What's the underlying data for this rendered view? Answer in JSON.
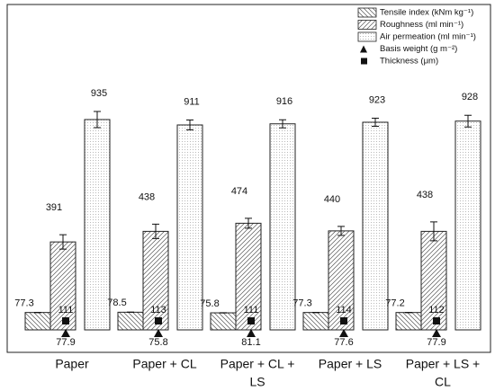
{
  "chart_data": {
    "type": "bar",
    "categories": [
      [
        "Paper"
      ],
      [
        "Paper + CL"
      ],
      [
        "Paper + CL +",
        "LS"
      ],
      [
        "Paper + LS"
      ],
      [
        "Paper + LS +",
        "CL"
      ]
    ],
    "series": [
      {
        "name": "Tensile index (kNm kg⁻¹)",
        "pattern": "back-hatch",
        "values": [
          77.3,
          78.5,
          75.8,
          77.3,
          77.2
        ],
        "errors": [
          0.6,
          0.6,
          0.6,
          0.6,
          0.6
        ]
      },
      {
        "name": "Roughness (ml min⁻¹)",
        "pattern": "forward-hatch",
        "values": [
          391,
          438,
          474,
          440,
          438
        ],
        "errors": [
          32,
          32,
          22,
          20,
          42
        ]
      },
      {
        "name": "Air permeation (ml min⁻¹)",
        "pattern": "dots",
        "values": [
          935,
          911,
          916,
          923,
          928
        ],
        "errors": [
          36,
          22,
          18,
          18,
          26
        ]
      },
      {
        "name": "Basis weight (g m⁻²)",
        "marker": "triangle",
        "values": [
          77.9,
          75.8,
          81.1,
          77.6,
          77.9
        ]
      },
      {
        "name": "Thickness (μm)",
        "marker": "square",
        "values": [
          111,
          113,
          111,
          114,
          112
        ]
      }
    ]
  }
}
